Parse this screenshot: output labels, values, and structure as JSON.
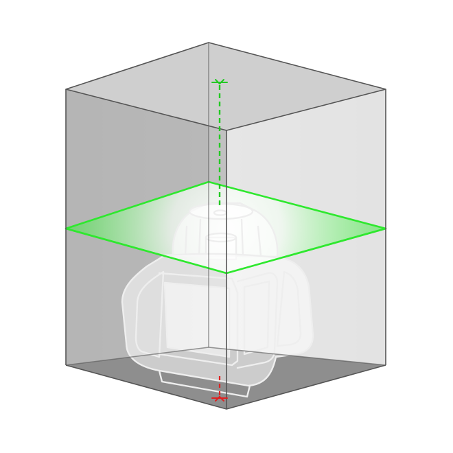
{
  "illustration": {
    "subject": "rotary-laser-level-in-room",
    "colors": {
      "background": "#ffffff",
      "room_edge": "#555555",
      "wall_left": "#a6a6a6",
      "wall_right": "#e6e6e6",
      "back_wall": "#c8c8c8",
      "ceiling": "#d2d2d2",
      "floor": "#8c8c8c",
      "laser_plane": "#2ee82e",
      "laser_plumb_up": "#22c922",
      "laser_plumb_down": "#e02020",
      "device_outline": "#ededed",
      "device_fill": "#ffffff"
    },
    "icons": [
      "plumb-up-marker-icon",
      "plumb-down-marker-icon"
    ]
  }
}
